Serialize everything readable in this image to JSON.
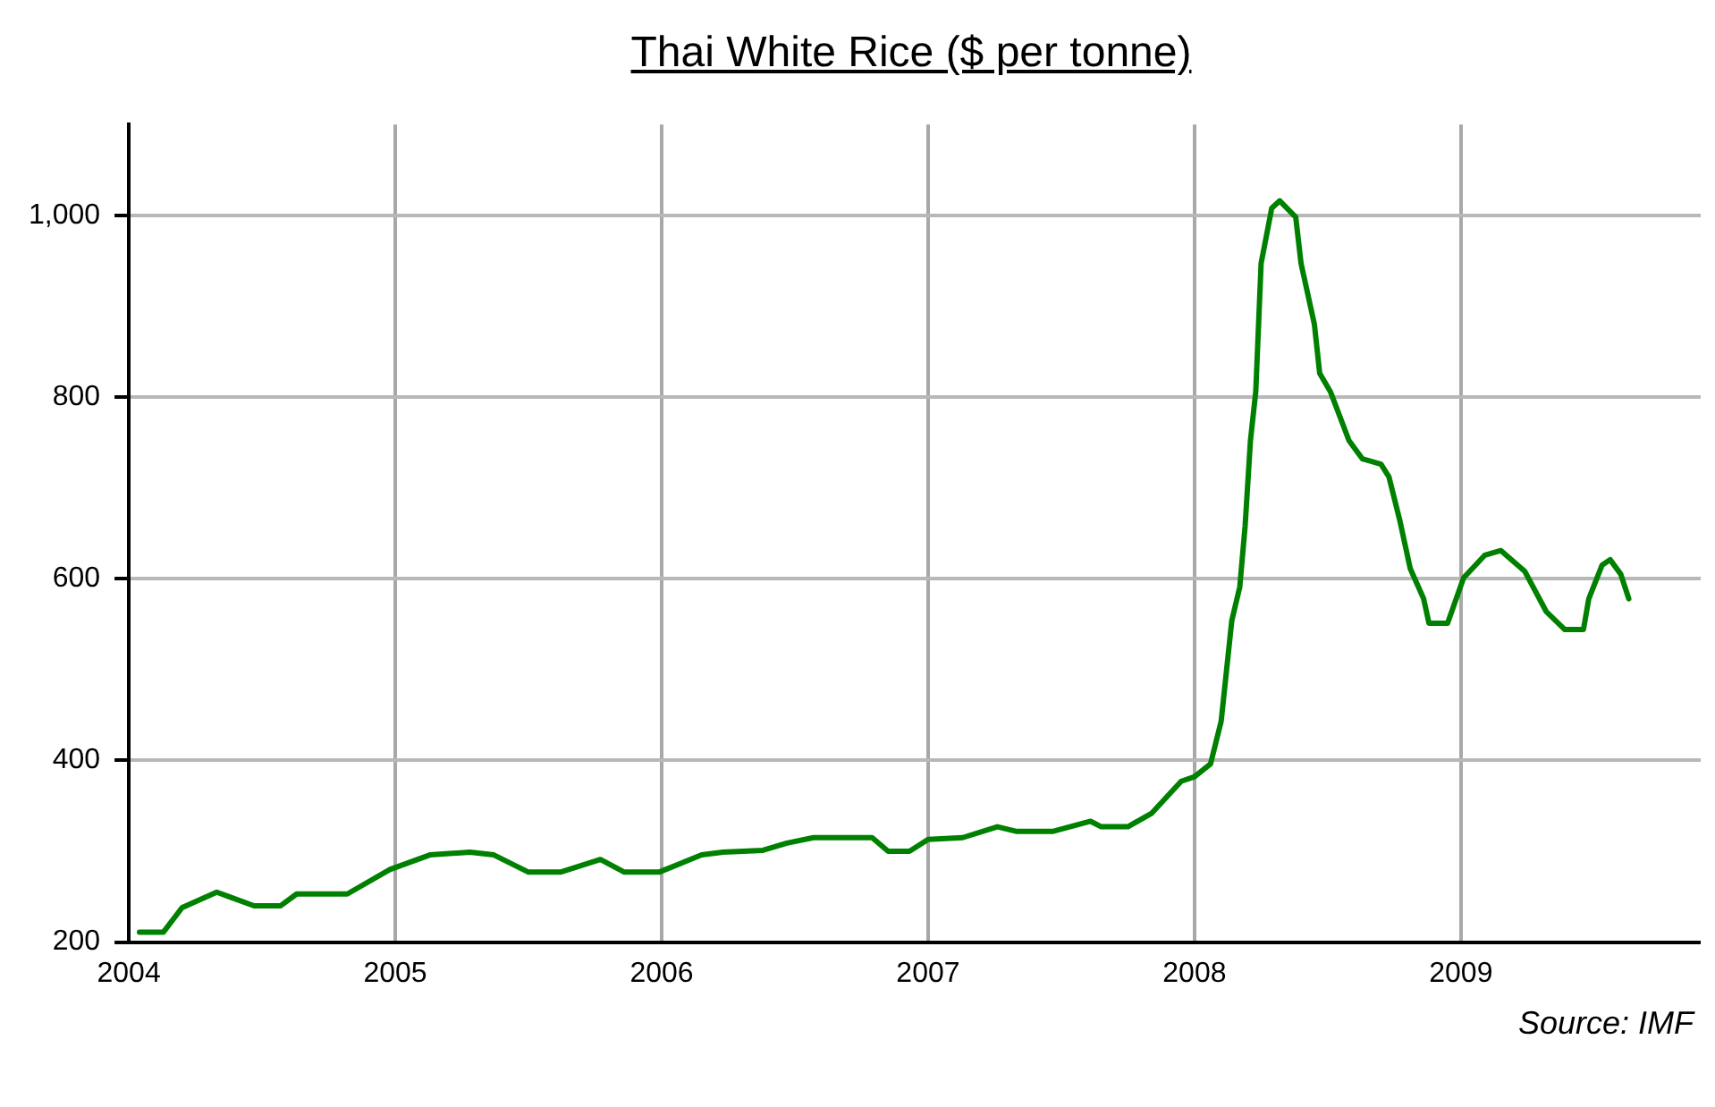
{
  "chart_data": {
    "type": "line",
    "title": "Thai White Rice ($ per tonne)",
    "annotations": [
      "Source: IMF"
    ],
    "x": [
      2004.04,
      2004.13,
      2004.2,
      2004.33,
      2004.47,
      2004.57,
      2004.63,
      2004.82,
      2004.98,
      2005.13,
      2005.28,
      2005.37,
      2005.5,
      2005.62,
      2005.77,
      2005.86,
      2005.99,
      2006.15,
      2006.23,
      2006.38,
      2006.47,
      2006.57,
      2006.79,
      2006.85,
      2006.93,
      2007.0,
      2007.13,
      2007.26,
      2007.33,
      2007.47,
      2007.61,
      2007.65,
      2007.75,
      2007.84,
      2007.95,
      2008.0,
      2008.06,
      2008.1,
      2008.14,
      2008.17,
      2008.19,
      2008.21,
      2008.23,
      2008.25,
      2008.29,
      2008.32,
      2008.38,
      2008.4,
      2008.45,
      2008.47,
      2008.51,
      2008.58,
      2008.63,
      2008.7,
      2008.73,
      2008.77,
      2008.81,
      2008.86,
      2008.88,
      2008.95,
      2009.01,
      2009.09,
      2009.15,
      2009.24,
      2009.32,
      2009.39,
      2009.46,
      2009.48,
      2009.53,
      2009.56,
      2009.6,
      2009.63
    ],
    "series": [
      {
        "color": "#008000",
        "values": [
          211,
          211,
          238,
          255,
          240,
          240,
          253,
          253,
          280,
          296,
          299,
          296,
          277,
          277,
          291,
          277,
          277,
          296,
          299,
          301,
          309,
          315,
          315,
          300,
          300,
          313,
          315,
          327,
          322,
          322,
          333,
          327,
          327,
          342,
          377,
          382,
          396,
          443,
          554,
          591,
          658,
          752,
          806,
          947,
          1008,
          1016,
          998,
          947,
          880,
          826,
          806,
          752,
          732,
          726,
          712,
          665,
          611,
          578,
          551,
          551,
          601,
          626,
          631,
          608,
          564,
          544,
          544,
          578,
          615,
          621,
          605,
          578
        ]
      }
    ],
    "xlim": [
      2004,
      2009.9
    ],
    "xticks": [
      2004,
      2005,
      2006,
      2007,
      2008,
      2009
    ],
    "ylim": [
      200,
      1100
    ],
    "yticks": [
      200,
      400,
      600,
      800,
      {
        "value": 1000,
        "label": "1,000"
      }
    ],
    "grid": true,
    "legend": false,
    "marker": "none",
    "line_style": "solid"
  }
}
